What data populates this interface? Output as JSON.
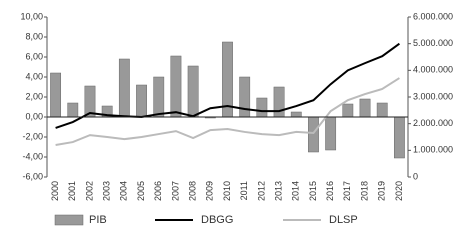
{
  "chart_data": {
    "type": "bar",
    "categories": [
      "2000",
      "2001",
      "2002",
      "2003",
      "2004",
      "2005",
      "2006",
      "2007",
      "2008",
      "2009",
      "2010",
      "2011",
      "2012",
      "2013",
      "2014",
      "2015",
      "2016",
      "2017",
      "2018",
      "2019",
      "2020"
    ],
    "series": [
      {
        "name": "PIB",
        "type": "bar",
        "color": "#999999",
        "values": [
          4.4,
          1.4,
          3.1,
          1.1,
          5.8,
          3.2,
          4.0,
          6.1,
          5.1,
          -0.1,
          7.5,
          4.0,
          1.9,
          3.0,
          0.5,
          -3.5,
          -3.3,
          1.3,
          1.8,
          1.4,
          -4.1
        ]
      },
      {
        "name": "DBGG",
        "type": "line",
        "axis": "y2",
        "color": "#000000",
        "values": [
          1840000,
          2060000,
          2400000,
          2320000,
          2280000,
          2250000,
          2360000,
          2430000,
          2280000,
          2580000,
          2660000,
          2550000,
          2470000,
          2470000,
          2660000,
          2880000,
          3480000,
          4000000,
          4270000,
          4530000,
          5000000
        ]
      },
      {
        "name": "DLSP",
        "type": "line",
        "axis": "y2",
        "color": "#bbbbbb",
        "values": [
          1200000,
          1310000,
          1570000,
          1500000,
          1420000,
          1500000,
          1610000,
          1720000,
          1460000,
          1760000,
          1800000,
          1690000,
          1610000,
          1570000,
          1690000,
          1650000,
          2470000,
          2880000,
          3110000,
          3300000,
          3710000
        ]
      }
    ],
    "ylim": [
      -6,
      10
    ],
    "yticks": [
      {
        "value": -6,
        "label": "-6,00"
      },
      {
        "value": -4,
        "label": "-4,00"
      },
      {
        "value": -2,
        "label": "-2,00"
      },
      {
        "value": 0,
        "label": "0,00"
      },
      {
        "value": 2,
        "label": "2,00"
      },
      {
        "value": 4,
        "label": "4,00"
      },
      {
        "value": 6,
        "label": "6,00"
      },
      {
        "value": 8,
        "label": "8,00"
      },
      {
        "value": 10,
        "label": "10,00"
      }
    ],
    "y2lim": [
      0,
      6000000
    ],
    "y2ticks": [
      0,
      {
        "value": 1000000,
        "label": "1.000.000"
      },
      {
        "value": 2000000,
        "label": "2.000.000"
      },
      {
        "value": 3000000,
        "label": "3.000.000"
      },
      {
        "value": 4000000,
        "label": "4.000.000"
      },
      {
        "value": 5000000,
        "label": "5.000.000"
      },
      {
        "value": 6000000,
        "label": "6.000.000"
      }
    ],
    "grid": false
  }
}
